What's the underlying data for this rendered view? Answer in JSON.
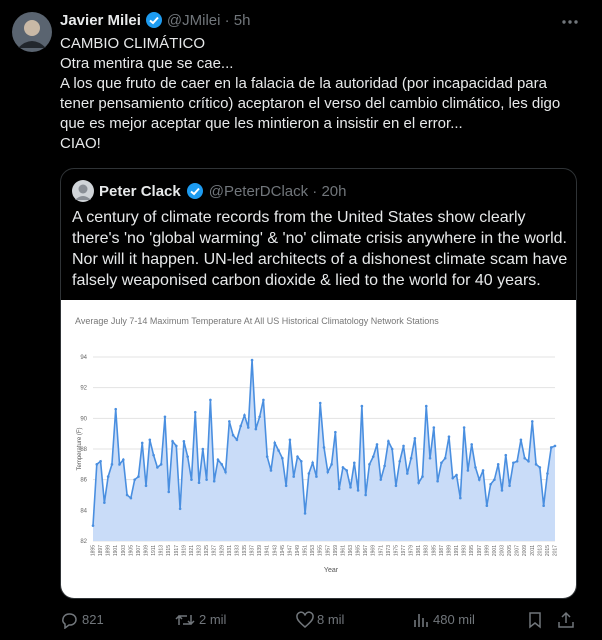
{
  "tweet": {
    "name": "Javier Milei",
    "meta": "@JMilei · 5h",
    "lines": [
      "CAMBIO CLIMÁTICO",
      "Otra mentira que se cae...",
      "A los que fruto de caer en la falacia de la autoridad (por incapacidad para tener pensamiento crítico) aceptaron el verso del cambio climático, les digo que es mejor aceptar que les mintieron a insistir en el error...",
      "CIAO!"
    ]
  },
  "quote": {
    "name": "Peter Clack",
    "meta": "@PeterDClack · 20h",
    "text": "A century of climate records from the United States show clearly there's 'no 'global warming' & 'no' climate crisis anywhere in the world. Nor will it happen. UN-led architects of a dishonest climate scam have falsely weaponised carbon dioxide & lied to the world for 40 years."
  },
  "chart_data": {
    "type": "line",
    "title": "Average July 7-14 Maximum Temperature At All US Historical Climatology Network Stations",
    "x_label": "Year",
    "y_label": "Temperature (F)",
    "x": [
      1895,
      1896,
      1897,
      1898,
      1899,
      1900,
      1901,
      1902,
      1903,
      1904,
      1905,
      1906,
      1907,
      1908,
      1909,
      1910,
      1911,
      1912,
      1913,
      1914,
      1915,
      1916,
      1917,
      1918,
      1919,
      1920,
      1921,
      1922,
      1923,
      1924,
      1925,
      1926,
      1927,
      1928,
      1929,
      1930,
      1931,
      1932,
      1933,
      1934,
      1935,
      1936,
      1937,
      1938,
      1939,
      1940,
      1941,
      1942,
      1943,
      1944,
      1945,
      1946,
      1947,
      1948,
      1949,
      1950,
      1951,
      1952,
      1953,
      1954,
      1955,
      1956,
      1957,
      1958,
      1959,
      1960,
      1961,
      1962,
      1963,
      1964,
      1965,
      1966,
      1967,
      1968,
      1969,
      1970,
      1971,
      1972,
      1973,
      1974,
      1975,
      1976,
      1977,
      1978,
      1979,
      1980,
      1981,
      1982,
      1983,
      1984,
      1985,
      1986,
      1987,
      1988,
      1989,
      1990,
      1991,
      1992,
      1993,
      1994,
      1995,
      1996,
      1997,
      1998,
      1999,
      2000,
      2001,
      2002,
      2003,
      2004,
      2005,
      2006,
      2007,
      2008,
      2009,
      2010,
      2011,
      2012,
      2013,
      2014,
      2015,
      2016,
      2017
    ],
    "series": [
      {
        "color": "#4a8fe0",
        "values": [
          83.0,
          87.0,
          87.2,
          84.5,
          86.2,
          87.0,
          90.6,
          87.0,
          87.3,
          85.0,
          84.8,
          86.0,
          86.2,
          88.4,
          85.6,
          88.6,
          87.6,
          86.8,
          87.0,
          90.1,
          85.2,
          88.5,
          88.2,
          84.1,
          88.5,
          87.5,
          86.0,
          90.4,
          85.8,
          88.0,
          86.0,
          91.2,
          85.9,
          87.3,
          87.0,
          86.5,
          89.8,
          88.9,
          88.6,
          89.5,
          90.2,
          89.4,
          93.8,
          89.3,
          90.1,
          91.2,
          87.5,
          86.6,
          88.4,
          87.9,
          87.4,
          85.6,
          88.6,
          86.2,
          87.5,
          87.2,
          83.8,
          86.4,
          87.1,
          86.2,
          91.0,
          88.1,
          86.5,
          87.0,
          89.1,
          85.4,
          86.8,
          86.6,
          85.5,
          87.1,
          85.3,
          90.8,
          85.0,
          87.0,
          87.5,
          88.3,
          86.0,
          86.9,
          88.5,
          88.0,
          85.6,
          87.2,
          88.2,
          86.4,
          87.4,
          88.7,
          85.8,
          86.2,
          90.8,
          87.4,
          89.4,
          85.9,
          87.1,
          87.4,
          88.8,
          86.1,
          86.3,
          84.8,
          89.4,
          86.6,
          88.3,
          86.8,
          86.0,
          86.6,
          84.3,
          85.7,
          86.0,
          87.0,
          85.3,
          87.6,
          85.6,
          87.1,
          87.2,
          88.6,
          87.4,
          87.2,
          89.8,
          87.0,
          86.8,
          84.3,
          86.4,
          88.1,
          88.2
        ]
      }
    ],
    "area_color": "#c9dcf8",
    "xlim": [
      1895,
      2017
    ],
    "xticks": [
      1895,
      1897,
      1899,
      1901,
      1903,
      1905,
      1907,
      1909,
      1911,
      1913,
      1915,
      1917,
      1919,
      1921,
      1923,
      1925,
      1927,
      1929,
      1931,
      1933,
      1935,
      1937,
      1939,
      1941,
      1943,
      1945,
      1947,
      1949,
      1951,
      1953,
      1955,
      1957,
      1959,
      1961,
      1963,
      1965,
      1967,
      1969,
      1971,
      1973,
      1975,
      1977,
      1979,
      1981,
      1983,
      1985,
      1987,
      1989,
      1991,
      1993,
      1995,
      1997,
      1999,
      2001,
      2003,
      2005,
      2007,
      2009,
      2011,
      2013,
      2015,
      2017
    ],
    "ylim": [
      82,
      94
    ],
    "yticks": [
      82,
      84,
      86,
      88,
      90,
      92,
      94
    ],
    "grid": true
  },
  "actions": {
    "replies": "821",
    "reposts": "2 mil",
    "likes": "8 mil",
    "views": "480 mil"
  }
}
